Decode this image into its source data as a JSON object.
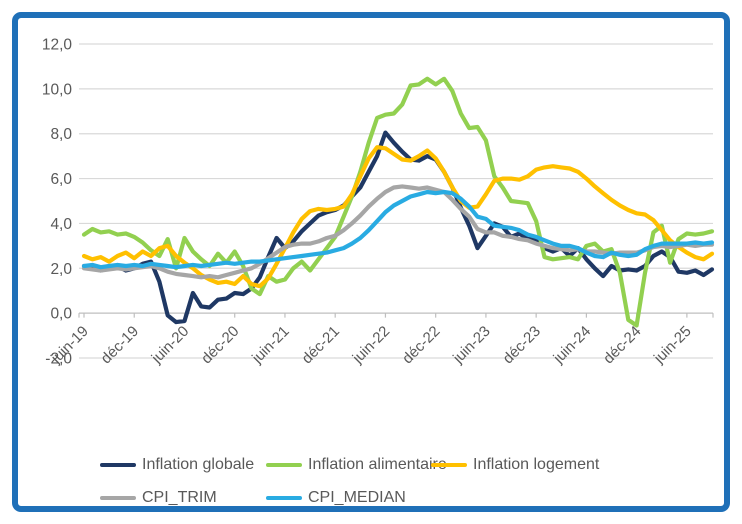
{
  "frame": {
    "border_color": "#1F70B8",
    "background": "#FFFFFF",
    "text_color": "#595959",
    "gridline_color": "#D9D9D9",
    "axis_line_color": "#BFBFBF"
  },
  "chart_data": {
    "type": "line",
    "title": "",
    "xlabel": "",
    "ylabel": "",
    "ylim": [
      -2,
      12
    ],
    "ytick_values": [
      12,
      10,
      8,
      6,
      4,
      2,
      0,
      -2
    ],
    "ytick_labels": [
      "12,0",
      "10,0",
      "8,0",
      "6,0",
      "4,0",
      "2,0",
      "0,0",
      "-2,0"
    ],
    "grid": true,
    "legend_position": "bottom",
    "x_tick_interval": 6,
    "x_tick_labels": [
      "juin-19",
      "déc-19",
      "juin-20",
      "déc-20",
      "juin-21",
      "déc-21",
      "juin-22",
      "déc-22",
      "juin-23",
      "déc-23",
      "juin-24",
      "déc-24",
      "juin-25"
    ],
    "x": [
      "juin-19",
      "juil-19",
      "août-19",
      "sept-19",
      "oct-19",
      "nov-19",
      "déc-19",
      "janv-20",
      "févr-20",
      "mars-20",
      "avr-20",
      "mai-20",
      "juin-20",
      "juil-20",
      "août-20",
      "sept-20",
      "oct-20",
      "nov-20",
      "déc-20",
      "janv-21",
      "févr-21",
      "mars-21",
      "avr-21",
      "mai-21",
      "juin-21",
      "juil-21",
      "août-21",
      "sept-21",
      "oct-21",
      "nov-21",
      "déc-21",
      "janv-22",
      "févr-22",
      "mars-22",
      "avr-22",
      "mai-22",
      "juin-22",
      "juil-22",
      "août-22",
      "sept-22",
      "oct-22",
      "nov-22",
      "déc-22",
      "janv-23",
      "févr-23",
      "mars-23",
      "avr-23",
      "mai-23",
      "juin-23",
      "juil-23",
      "août-23",
      "sept-23",
      "oct-23",
      "nov-23",
      "déc-23",
      "janv-24",
      "févr-24",
      "mars-24",
      "avr-24",
      "mai-24",
      "juin-24",
      "juil-24",
      "août-24",
      "sept-24",
      "oct-24",
      "nov-24",
      "déc-24",
      "janv-25",
      "févr-25",
      "mars-25",
      "avr-25",
      "mai-25",
      "juin-25",
      "juil-25",
      "août-25",
      "sept-25"
    ],
    "series": [
      {
        "name": "Inflation globale",
        "color": "#1F3864",
        "values": [
          2.1,
          2.0,
          1.9,
          2.0,
          2.1,
          1.9,
          2.0,
          2.2,
          2.3,
          1.4,
          -0.1,
          -0.4,
          -0.35,
          0.9,
          0.3,
          0.25,
          0.6,
          0.65,
          0.9,
          0.85,
          1.1,
          1.6,
          2.5,
          3.35,
          2.9,
          3.2,
          3.65,
          4.0,
          4.35,
          4.5,
          4.6,
          4.8,
          5.2,
          5.6,
          6.3,
          7.0,
          8.05,
          7.6,
          7.2,
          6.85,
          6.8,
          7.0,
          6.85,
          6.3,
          5.6,
          4.7,
          3.9,
          2.9,
          3.45,
          4.0,
          3.85,
          3.4,
          3.55,
          3.3,
          3.3,
          2.9,
          2.75,
          2.9,
          2.55,
          2.9,
          2.4,
          2.0,
          1.65,
          2.1,
          1.9,
          1.95,
          1.9,
          2.1,
          2.55,
          2.75,
          2.5,
          1.85,
          1.8,
          1.9,
          1.7,
          1.95
        ]
      },
      {
        "name": "Inflation alimentaire",
        "color": "#92D050",
        "values": [
          3.5,
          3.75,
          3.6,
          3.65,
          3.5,
          3.55,
          3.4,
          3.15,
          2.8,
          2.55,
          3.3,
          2.0,
          3.35,
          2.75,
          2.4,
          2.1,
          2.65,
          2.25,
          2.75,
          2.1,
          1.1,
          0.85,
          1.65,
          1.4,
          1.5,
          2.0,
          2.3,
          1.9,
          2.4,
          2.9,
          3.4,
          4.3,
          5.2,
          6.3,
          7.6,
          8.7,
          8.85,
          8.9,
          9.3,
          10.15,
          10.2,
          10.45,
          10.2,
          10.45,
          9.9,
          8.9,
          8.25,
          8.3,
          7.7,
          6.1,
          5.6,
          5.0,
          4.95,
          4.9,
          4.1,
          2.5,
          2.4,
          2.45,
          2.5,
          2.4,
          3.0,
          3.1,
          2.75,
          2.85,
          1.8,
          -0.3,
          -0.55,
          1.8,
          3.6,
          3.9,
          2.25,
          3.3,
          3.55,
          3.5,
          3.55,
          3.65
        ]
      },
      {
        "name": "Inflation logement",
        "color": "#FFC000",
        "values": [
          2.55,
          2.4,
          2.5,
          2.3,
          2.55,
          2.7,
          2.45,
          2.75,
          2.55,
          2.9,
          3.0,
          2.55,
          2.25,
          2.0,
          1.7,
          1.5,
          1.35,
          1.4,
          1.3,
          1.65,
          1.3,
          1.2,
          1.55,
          2.2,
          2.9,
          3.6,
          4.2,
          4.55,
          4.65,
          4.6,
          4.65,
          4.75,
          5.3,
          6.1,
          6.9,
          7.4,
          7.35,
          7.1,
          6.85,
          6.8,
          7.0,
          7.25,
          6.9,
          6.3,
          5.6,
          5.0,
          4.7,
          4.75,
          5.3,
          5.9,
          6.0,
          6.0,
          5.95,
          6.1,
          6.4,
          6.5,
          6.55,
          6.5,
          6.45,
          6.3,
          6.0,
          5.65,
          5.35,
          5.05,
          4.8,
          4.6,
          4.45,
          4.4,
          4.15,
          3.7,
          3.25,
          2.95,
          2.7,
          2.5,
          2.4,
          2.65
        ]
      },
      {
        "name": "CPI_TRIM",
        "color": "#A6A6A6",
        "values": [
          2.0,
          1.95,
          1.9,
          1.95,
          2.0,
          1.95,
          2.0,
          2.05,
          2.1,
          2.0,
          1.85,
          1.75,
          1.7,
          1.65,
          1.6,
          1.65,
          1.6,
          1.7,
          1.8,
          1.9,
          2.0,
          2.2,
          2.45,
          2.7,
          2.95,
          3.05,
          3.1,
          3.1,
          3.2,
          3.35,
          3.45,
          3.7,
          4.0,
          4.35,
          4.75,
          5.1,
          5.4,
          5.6,
          5.65,
          5.6,
          5.55,
          5.6,
          5.5,
          5.4,
          5.05,
          4.65,
          4.3,
          3.75,
          3.6,
          3.6,
          3.45,
          3.4,
          3.3,
          3.25,
          3.1,
          3.0,
          2.9,
          2.85,
          2.8,
          2.85,
          2.75,
          2.75,
          2.7,
          2.65,
          2.7,
          2.7,
          2.7,
          2.8,
          2.95,
          3.0,
          2.95,
          3.0,
          3.05,
          3.0,
          3.05,
          3.05
        ]
      },
      {
        "name": "CPI_MEDIAN",
        "color": "#29ABE2",
        "values": [
          2.1,
          2.15,
          2.05,
          2.1,
          2.15,
          2.1,
          2.15,
          2.1,
          2.2,
          2.15,
          2.1,
          2.05,
          2.1,
          2.15,
          2.1,
          2.15,
          2.2,
          2.25,
          2.2,
          2.25,
          2.3,
          2.3,
          2.35,
          2.4,
          2.45,
          2.5,
          2.55,
          2.6,
          2.65,
          2.7,
          2.8,
          2.9,
          3.1,
          3.35,
          3.7,
          4.1,
          4.5,
          4.8,
          5.0,
          5.2,
          5.3,
          5.4,
          5.35,
          5.4,
          5.35,
          5.1,
          4.75,
          4.3,
          4.2,
          3.9,
          3.85,
          3.8,
          3.7,
          3.5,
          3.4,
          3.25,
          3.1,
          3.0,
          3.0,
          2.9,
          2.7,
          2.55,
          2.5,
          2.7,
          2.6,
          2.55,
          2.6,
          2.85,
          3.0,
          3.1,
          3.1,
          3.1,
          3.1,
          3.15,
          3.1,
          3.15
        ]
      }
    ]
  }
}
